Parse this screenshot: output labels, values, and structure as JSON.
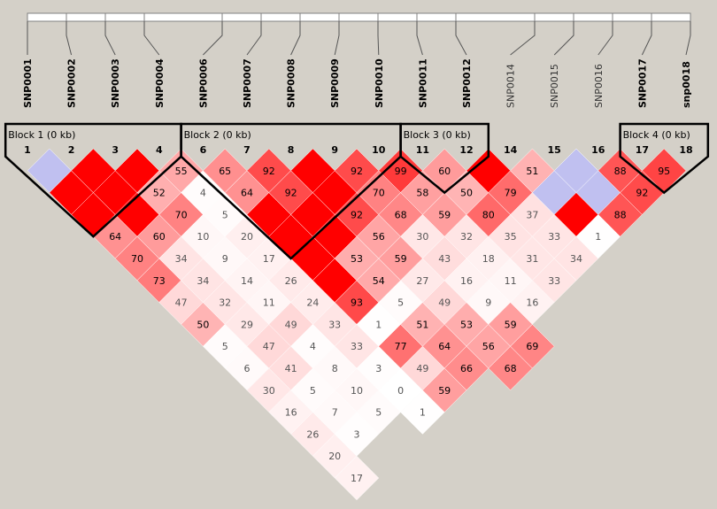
{
  "snps": [
    {
      "index": 1,
      "name": "SNP0001",
      "bold": true
    },
    {
      "index": 2,
      "name": "SNP0002",
      "bold": true
    },
    {
      "index": 3,
      "name": "SNP0003",
      "bold": true
    },
    {
      "index": 4,
      "name": "SNP0004",
      "bold": true
    },
    {
      "index": 6,
      "name": "SNP0006",
      "bold": true
    },
    {
      "index": 7,
      "name": "SNP0007",
      "bold": true
    },
    {
      "index": 8,
      "name": "SNP0008",
      "bold": true
    },
    {
      "index": 9,
      "name": "SNP0009",
      "bold": true
    },
    {
      "index": 10,
      "name": "SNP0010",
      "bold": true
    },
    {
      "index": 11,
      "name": "SNP0011",
      "bold": true
    },
    {
      "index": 12,
      "name": "SNP0012",
      "bold": true
    },
    {
      "index": 14,
      "name": "SNP0014",
      "bold": false
    },
    {
      "index": 15,
      "name": "SNP0015",
      "bold": false
    },
    {
      "index": 16,
      "name": "SNP0016",
      "bold": false
    },
    {
      "index": 17,
      "name": "SNP0017",
      "bold": true
    },
    {
      "index": 18,
      "name": "snp0018",
      "bold": true
    }
  ],
  "blocks": [
    {
      "label": "Block 1 (0 kb)",
      "first": 0,
      "last": 3
    },
    {
      "label": "Block 2 (0 kb)",
      "first": 4,
      "last": 8
    },
    {
      "label": "Block 3 (0 kb)",
      "first": 9,
      "last": 10
    },
    {
      "label": "Block 4 (0 kb)",
      "first": 14,
      "last": 15
    }
  ],
  "colors": {
    "background": "#d4d0c8",
    "strong_ld": "#ff0000",
    "uninformative": "#c0c0f0",
    "low_ld": "#ffffff",
    "block_outline": "#000000"
  },
  "ld_values": [
    [
      0,
      1,
      ""
    ],
    [
      0,
      2,
      ""
    ],
    [
      0,
      3,
      ""
    ],
    [
      0,
      4,
      "64"
    ],
    [
      0,
      5,
      "70"
    ],
    [
      0,
      6,
      "73"
    ],
    [
      0,
      7,
      "47"
    ],
    [
      0,
      8,
      "50"
    ],
    [
      0,
      9,
      "5"
    ],
    [
      0,
      10,
      "6"
    ],
    [
      0,
      11,
      "30"
    ],
    [
      0,
      12,
      "16"
    ],
    [
      0,
      13,
      "26"
    ],
    [
      0,
      14,
      "20"
    ],
    [
      0,
      15,
      "17"
    ],
    [
      1,
      2,
      ""
    ],
    [
      1,
      3,
      ""
    ],
    [
      1,
      4,
      ""
    ],
    [
      1,
      5,
      "60"
    ],
    [
      1,
      6,
      "34"
    ],
    [
      1,
      7,
      "34"
    ],
    [
      1,
      8,
      "32"
    ],
    [
      1,
      9,
      "29"
    ],
    [
      1,
      10,
      "47"
    ],
    [
      1,
      11,
      "41"
    ],
    [
      1,
      12,
      "5"
    ],
    [
      1,
      13,
      "7"
    ],
    [
      1,
      14,
      "3"
    ],
    [
      2,
      3,
      ""
    ],
    [
      2,
      4,
      "52"
    ],
    [
      2,
      5,
      "70"
    ],
    [
      2,
      6,
      "10"
    ],
    [
      2,
      7,
      "9"
    ],
    [
      2,
      8,
      "14"
    ],
    [
      2,
      9,
      "11"
    ],
    [
      2,
      10,
      "49"
    ],
    [
      2,
      11,
      "4"
    ],
    [
      2,
      12,
      "8"
    ],
    [
      2,
      13,
      "10"
    ],
    [
      2,
      14,
      "5"
    ],
    [
      3,
      4,
      "55"
    ],
    [
      3,
      5,
      "4"
    ],
    [
      3,
      6,
      "5"
    ],
    [
      3,
      7,
      "20"
    ],
    [
      3,
      8,
      "17"
    ],
    [
      3,
      9,
      "26"
    ],
    [
      3,
      10,
      "24"
    ],
    [
      3,
      11,
      "33"
    ],
    [
      3,
      12,
      "33"
    ],
    [
      3,
      13,
      "3"
    ],
    [
      3,
      14,
      "0"
    ],
    [
      3,
      15,
      "1"
    ],
    [
      4,
      5,
      "65"
    ],
    [
      4,
      6,
      "64"
    ],
    [
      4,
      7,
      ""
    ],
    [
      4,
      8,
      ""
    ],
    [
      4,
      9,
      ""
    ],
    [
      4,
      10,
      ""
    ],
    [
      4,
      11,
      "93"
    ],
    [
      4,
      12,
      "1"
    ],
    [
      4,
      13,
      "77"
    ],
    [
      4,
      14,
      "49"
    ],
    [
      4,
      15,
      "59"
    ],
    [
      5,
      6,
      "92"
    ],
    [
      5,
      7,
      "92"
    ],
    [
      5,
      8,
      ""
    ],
    [
      5,
      9,
      ""
    ],
    [
      5,
      10,
      "53"
    ],
    [
      5,
      11,
      "54"
    ],
    [
      5,
      12,
      "5"
    ],
    [
      5,
      13,
      "51"
    ],
    [
      5,
      14,
      "64"
    ],
    [
      5,
      15,
      "66"
    ],
    [
      6,
      7,
      ""
    ],
    [
      6,
      8,
      ""
    ],
    [
      6,
      9,
      "92"
    ],
    [
      6,
      10,
      "56"
    ],
    [
      6,
      11,
      "59"
    ],
    [
      6,
      12,
      "27"
    ],
    [
      6,
      13,
      "49"
    ],
    [
      6,
      14,
      "53"
    ],
    [
      6,
      15,
      "56"
    ],
    [
      6,
      16,
      "68"
    ],
    [
      7,
      8,
      "92"
    ],
    [
      7,
      9,
      "70"
    ],
    [
      7,
      10,
      "68"
    ],
    [
      7,
      11,
      "30"
    ],
    [
      7,
      12,
      "43"
    ],
    [
      7,
      13,
      "16"
    ],
    [
      7,
      14,
      "9"
    ],
    [
      7,
      15,
      "59"
    ],
    [
      7,
      16,
      "69"
    ],
    [
      8,
      9,
      "99"
    ],
    [
      8,
      10,
      "58"
    ],
    [
      8,
      11,
      "59"
    ],
    [
      8,
      12,
      "32"
    ],
    [
      8,
      13,
      "18"
    ],
    [
      8,
      14,
      "11"
    ],
    [
      8,
      15,
      "16"
    ],
    [
      9,
      10,
      "60"
    ],
    [
      9,
      11,
      "50"
    ],
    [
      9,
      12,
      "80"
    ],
    [
      9,
      13,
      "35"
    ],
    [
      9,
      14,
      "31"
    ],
    [
      9,
      15,
      "33"
    ],
    [
      10,
      11,
      ""
    ],
    [
      10,
      12,
      "79"
    ],
    [
      10,
      13,
      "37"
    ],
    [
      10,
      14,
      "33"
    ],
    [
      10,
      15,
      "34"
    ],
    [
      11,
      12,
      "51"
    ],
    [
      11,
      13,
      ""
    ],
    [
      11,
      14,
      ""
    ],
    [
      11,
      15,
      "1"
    ],
    [
      12,
      13,
      ""
    ],
    [
      12,
      14,
      ""
    ],
    [
      12,
      15,
      "88"
    ],
    [
      13,
      14,
      "88"
    ],
    [
      13,
      15,
      "92"
    ],
    [
      14,
      15,
      "95"
    ],
    [
      12,
      13,
      ""
    ]
  ]
}
